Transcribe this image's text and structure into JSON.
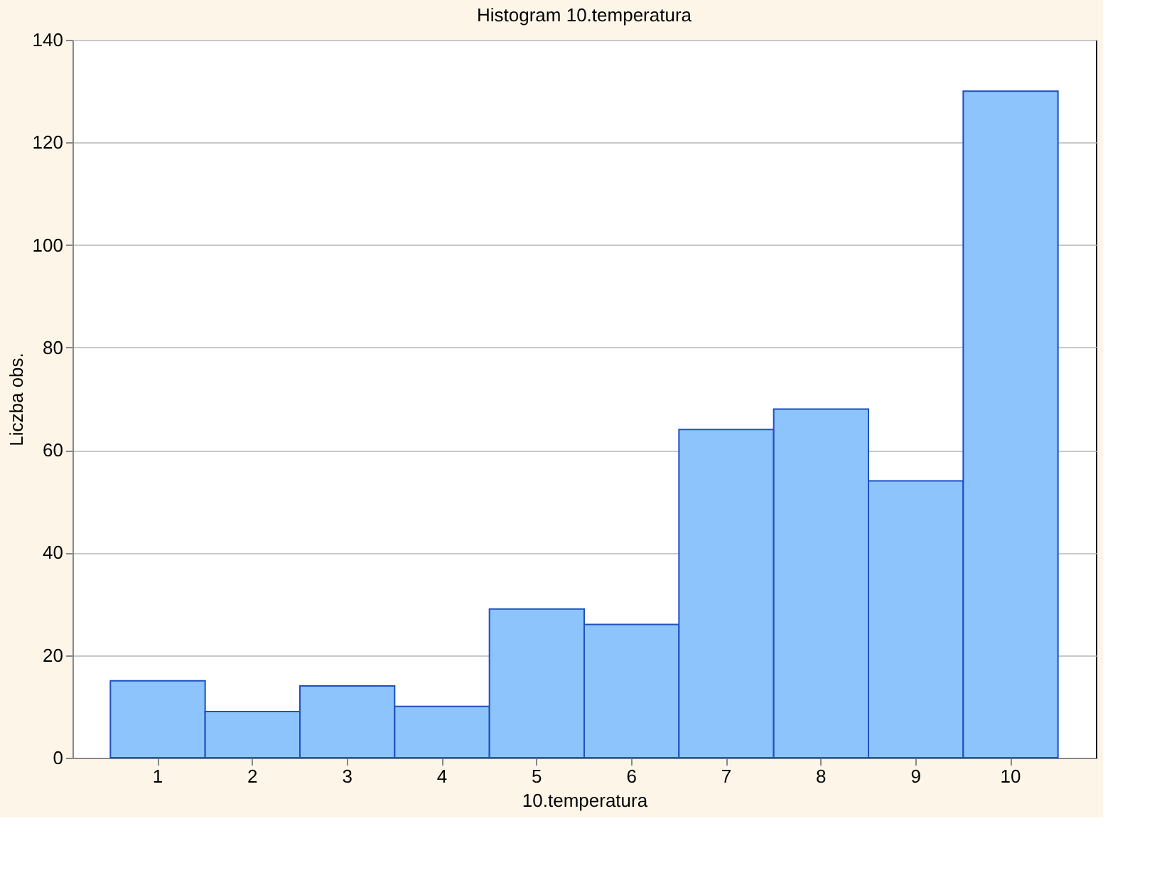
{
  "chart_data": {
    "type": "bar",
    "title": "Histogram    10.temperatura",
    "xlabel": "10.temperatura",
    "ylabel": "Liczba obs.",
    "categories": [
      "1",
      "2",
      "3",
      "4",
      "5",
      "6",
      "7",
      "8",
      "9",
      "10"
    ],
    "values": [
      15,
      9,
      14,
      10,
      29,
      26,
      64,
      68,
      54,
      130
    ],
    "color": "#8cc4fb",
    "ylim": [
      0,
      140
    ],
    "yticks": [
      0,
      20,
      40,
      60,
      80,
      100,
      120,
      140
    ],
    "grid": "y"
  }
}
